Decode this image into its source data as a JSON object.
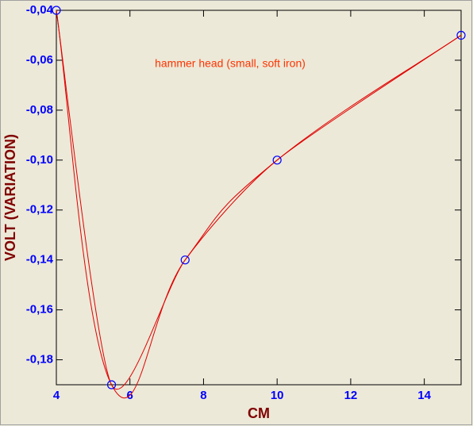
{
  "chart_data": {
    "type": "line",
    "annotation": "hammer head (small, soft iron)",
    "x_label": "CM",
    "y_label": "VOLT (VARIATION)",
    "x": [
      4,
      5.5,
      7.5,
      10,
      15
    ],
    "values": [
      -0.04,
      -0.19,
      -0.14,
      -0.1,
      -0.05
    ],
    "color": "#e00000",
    "marker_color": "#0000ff",
    "xlim": [
      4,
      15
    ],
    "xticks": [
      4,
      6,
      8,
      10,
      12,
      14
    ],
    "ylim": [
      -0.19,
      -0.04
    ],
    "yticks": [
      {
        "value": -0.04,
        "label": "-0,04"
      },
      {
        "value": -0.06,
        "label": "-0,06"
      },
      {
        "value": -0.08,
        "label": "-0,08"
      },
      {
        "value": -0.1,
        "label": "-0,10"
      },
      {
        "value": -0.12,
        "label": "-0,12"
      },
      {
        "value": -0.14,
        "label": "-0,14"
      },
      {
        "value": -0.16,
        "label": "-0,16"
      },
      {
        "value": -0.18,
        "label": "-0,18"
      }
    ],
    "grid": false
  }
}
